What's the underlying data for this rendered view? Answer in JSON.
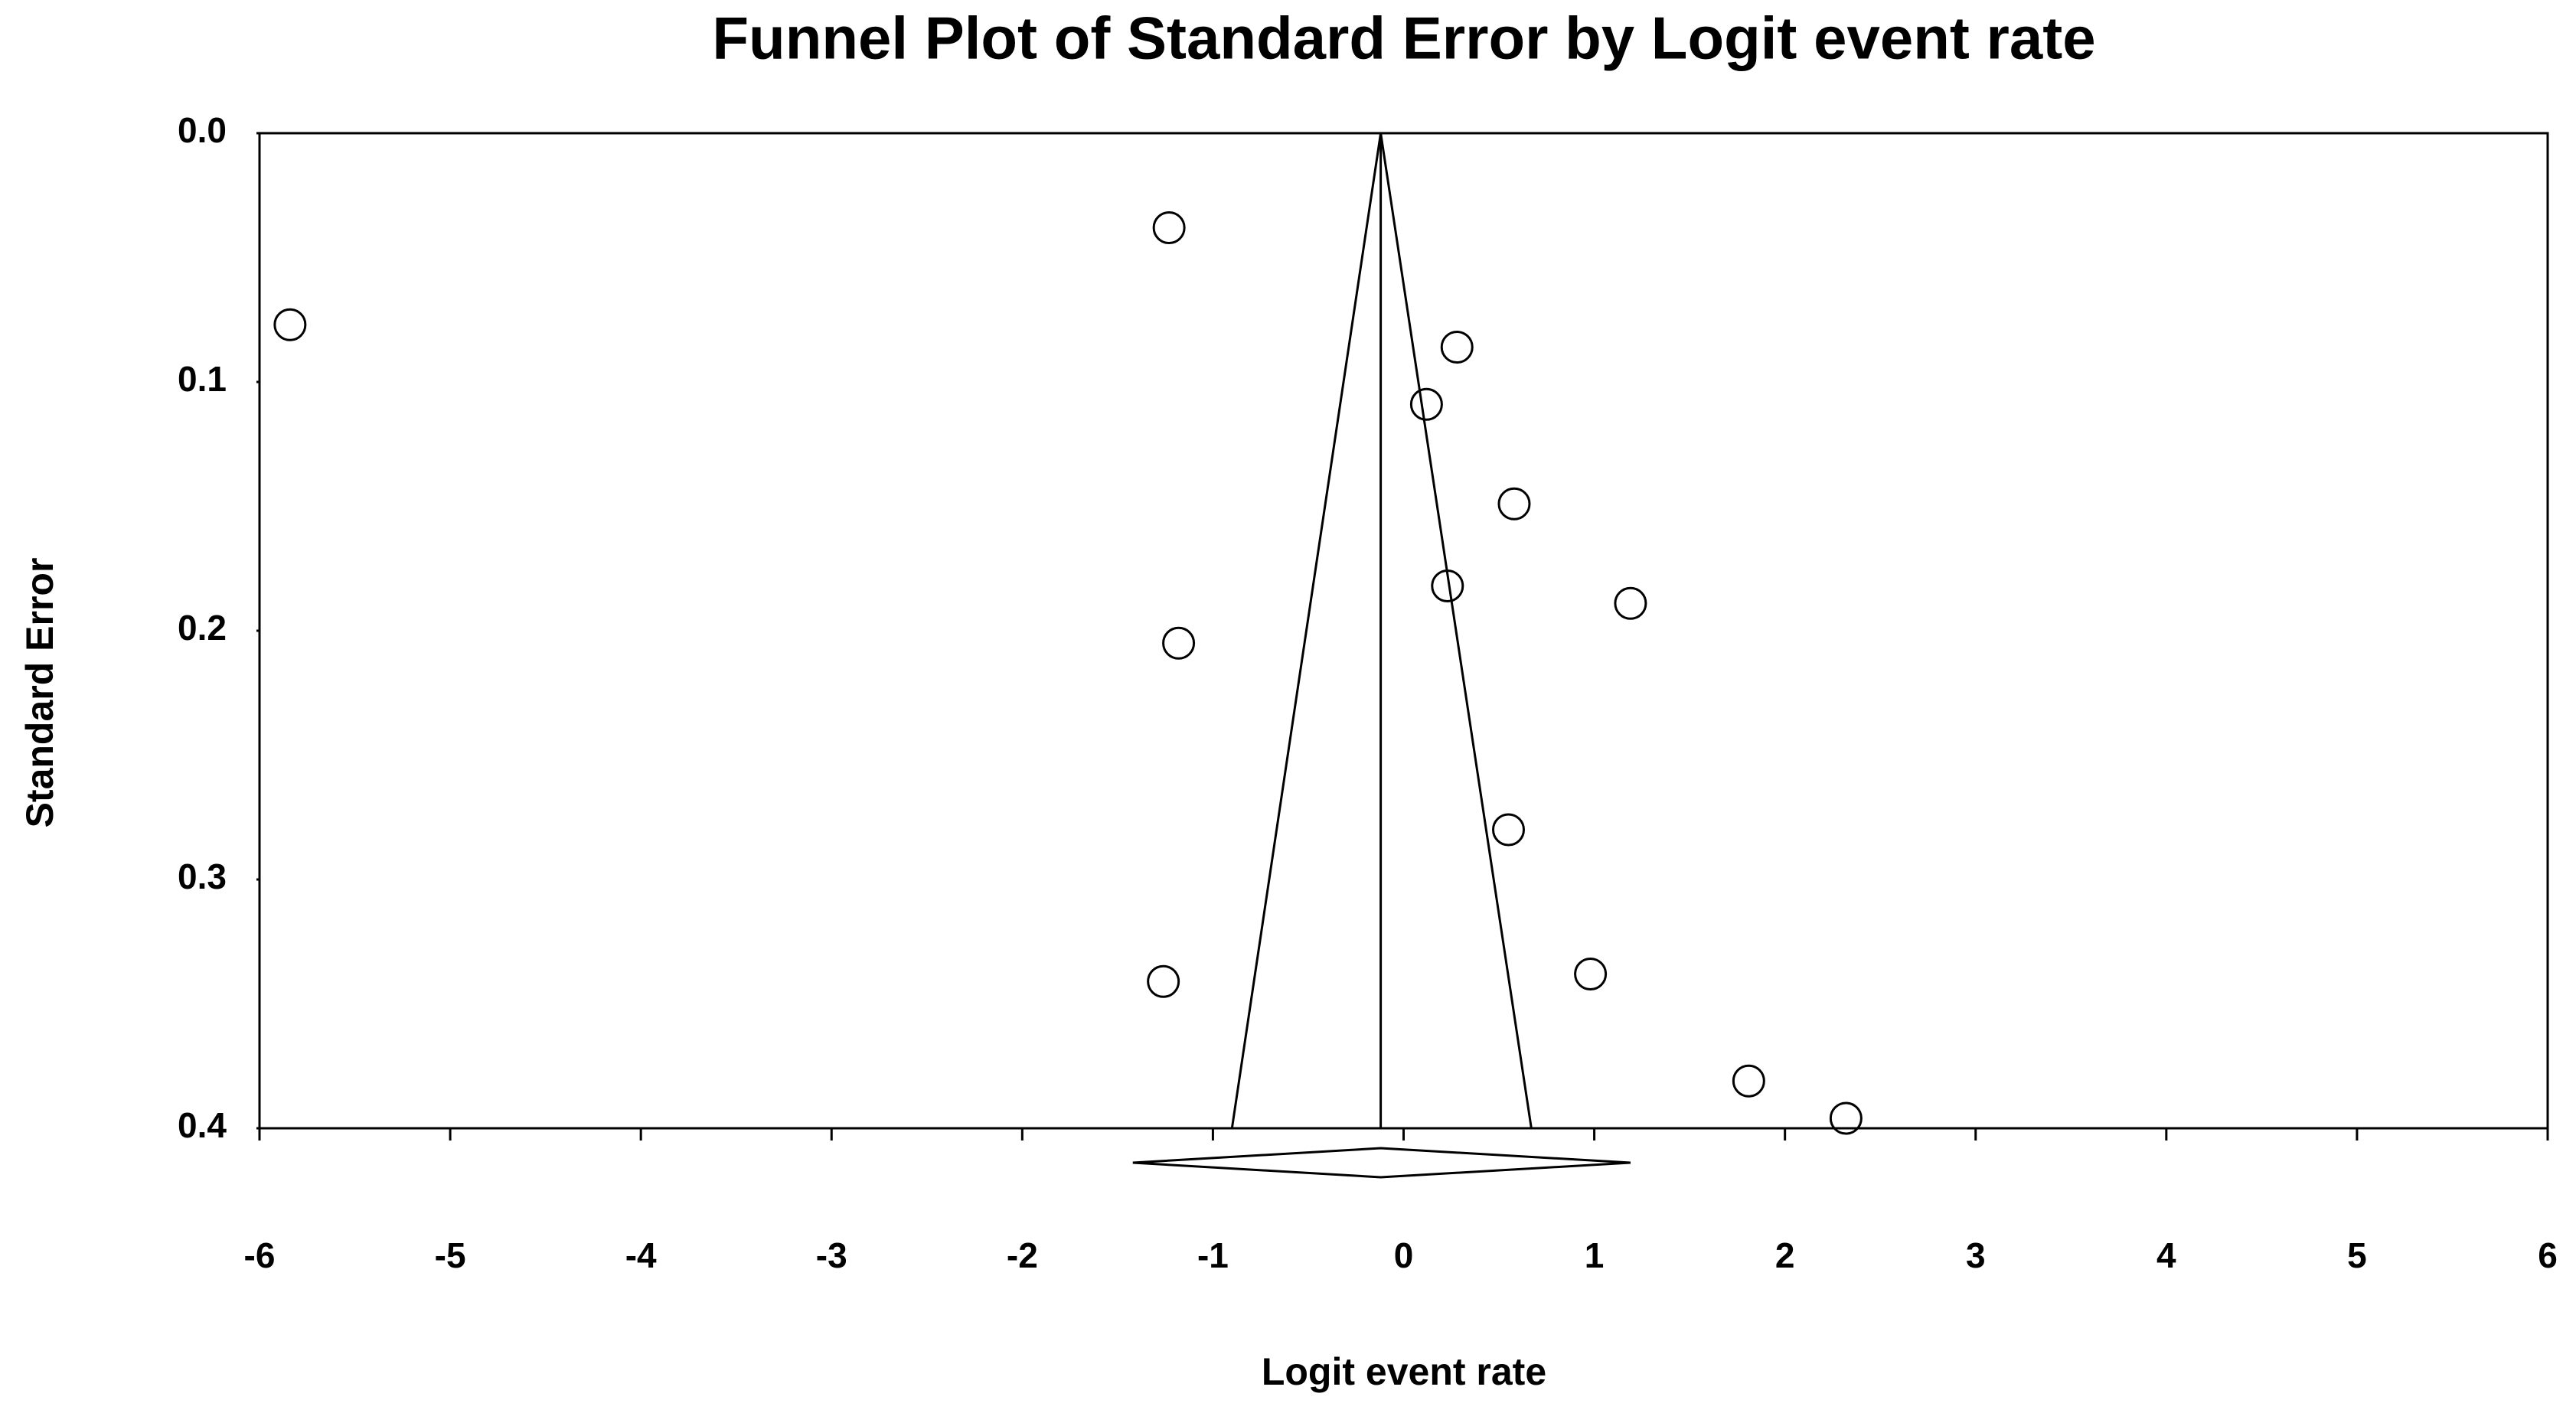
{
  "chart_data": {
    "type": "funnel",
    "title": "Funnel Plot of Standard Error by Logit event rate",
    "x_label": "Logit event rate",
    "y_label": "Standard Error",
    "x": [
      -1.23,
      -5.84,
      0.28,
      0.12,
      0.58,
      0.23,
      1.19,
      -1.18,
      0.55,
      -1.26,
      0.98,
      1.81,
      2.32
    ],
    "values": [
      0.038,
      0.077,
      0.086,
      0.109,
      0.149,
      0.182,
      0.189,
      0.205,
      0.28,
      0.341,
      0.338,
      0.381,
      0.396
    ],
    "pooled_estimate": -0.12,
    "pooled_ci": [
      -1.42,
      1.19
    ],
    "funnel_base": [
      -0.9,
      0.67
    ],
    "xlim": [
      -6,
      6
    ],
    "xticks": [
      -6,
      -5,
      -4,
      -3,
      -2,
      -1,
      0,
      1,
      2,
      3,
      4,
      5,
      6
    ],
    "ylim": [
      0,
      0.4
    ],
    "yticks": [
      {
        "value": 0,
        "label": "0.0"
      },
      0.1,
      0.2,
      0.3,
      0.4
    ],
    "y_inverted": true,
    "color": "#000000"
  }
}
